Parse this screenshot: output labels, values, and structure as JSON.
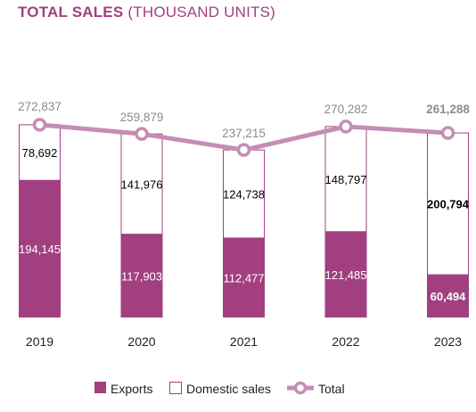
{
  "title": {
    "main": "TOTAL SALES",
    "unit": "(THOUSAND UNITS)"
  },
  "colors": {
    "exports": "#a13f80",
    "domestic_fill": "#ffffff",
    "domestic_stroke": "#a13f80",
    "total_line": "#c58db4",
    "total_label": "#8c8c8c",
    "title": "#a13f80"
  },
  "chart_data": {
    "type": "bar",
    "stacked": true,
    "categories": [
      "2019",
      "2020",
      "2021",
      "2022",
      "2023"
    ],
    "series": [
      {
        "name": "Exports",
        "values": [
          194145,
          117903,
          112477,
          121485,
          60494
        ],
        "labels": [
          "194,145",
          "117,903",
          "112,477",
          "121,485",
          "60,494"
        ]
      },
      {
        "name": "Domestic sales",
        "values": [
          78692,
          141976,
          124738,
          148797,
          200794
        ],
        "labels": [
          "78,692",
          "141,976",
          "124,738",
          "148,797",
          "200,794"
        ]
      }
    ],
    "total": {
      "name": "Total",
      "type": "line",
      "values": [
        272837,
        259879,
        237215,
        270282,
        261288
      ],
      "labels": [
        "272,837",
        "259,879",
        "237,215",
        "270,282",
        "261,288"
      ]
    },
    "legend_position": "bottom",
    "grid": false
  }
}
